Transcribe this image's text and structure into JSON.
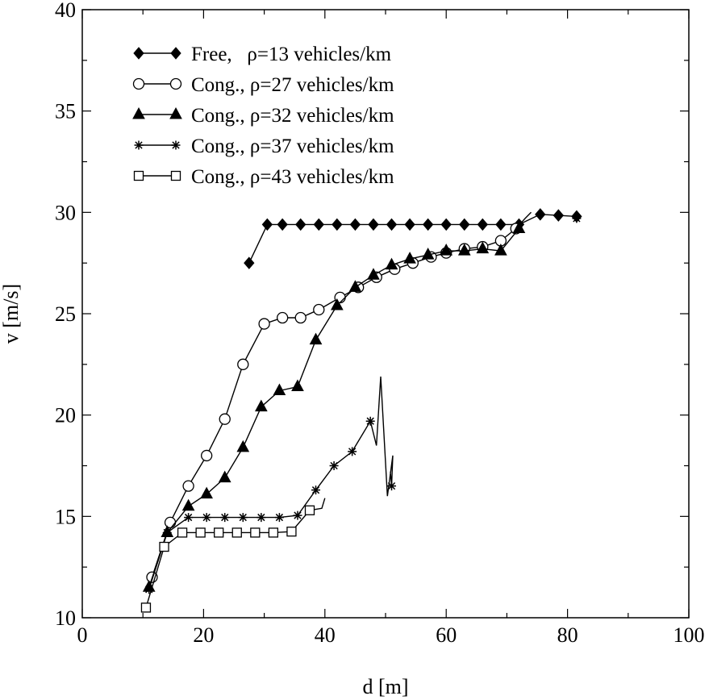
{
  "chart_data": {
    "type": "line",
    "title": "",
    "xlabel": "d [m]",
    "ylabel": "v [m/s]",
    "xlim": [
      0,
      100
    ],
    "ylim": [
      10,
      40
    ],
    "xticks": [
      0,
      20,
      40,
      60,
      80,
      100
    ],
    "yticks": [
      10,
      15,
      20,
      25,
      30,
      35,
      40
    ],
    "grid": false,
    "legend_position": "top-left",
    "series": [
      {
        "name": "Free,   ρ=13 vehicles/km",
        "marker": "diamond-filled",
        "x": [
          27.5,
          30.5,
          33,
          36,
          39,
          42,
          45,
          48,
          51,
          54,
          57,
          60,
          63,
          66,
          69,
          72,
          75.5,
          78.5,
          81.5
        ],
        "y": [
          27.5,
          29.4,
          29.4,
          29.4,
          29.4,
          29.4,
          29.4,
          29.4,
          29.4,
          29.4,
          29.4,
          29.4,
          29.4,
          29.4,
          29.4,
          29.4,
          29.9,
          29.85,
          29.8
        ],
        "line_only_x": [],
        "line_only_y": []
      },
      {
        "name": "Cong., ρ=27 vehicles/km",
        "marker": "circle-open",
        "x": [
          11.5,
          14.5,
          17.5,
          20.5,
          23.5,
          26.5,
          30,
          33,
          36,
          39,
          42.5,
          45.5,
          48.5,
          51.5,
          54.5,
          57.5,
          60,
          63,
          66,
          69,
          71.5
        ],
        "y": [
          12.0,
          14.7,
          16.5,
          18.0,
          19.8,
          22.5,
          24.5,
          24.8,
          24.8,
          25.2,
          25.8,
          26.3,
          26.8,
          27.2,
          27.5,
          27.8,
          28.0,
          28.2,
          28.3,
          28.6,
          29.2
        ],
        "line_only_x": [
          73,
          74
        ],
        "line_only_y": [
          29.7,
          30.0
        ]
      },
      {
        "name": "Cong., ρ=32 vehicles/km",
        "marker": "triangle-filled",
        "x": [
          11,
          14,
          17.5,
          20.5,
          23.5,
          26.5,
          29.5,
          32.5,
          35.5,
          38.5,
          42,
          45,
          48,
          51,
          54,
          57,
          60,
          63,
          66,
          69,
          72
        ],
        "y": [
          11.5,
          14.2,
          15.5,
          16.1,
          16.9,
          18.4,
          20.4,
          21.2,
          21.4,
          23.7,
          25.4,
          26.3,
          26.9,
          27.4,
          27.7,
          27.9,
          28.1,
          28.1,
          28.2,
          28.1,
          29.2
        ],
        "line_only_x": [],
        "line_only_y": []
      },
      {
        "name": "Cong., ρ=37 vehicles/km",
        "marker": "asterisk",
        "x": [
          11,
          14,
          17.5,
          20.5,
          23.5,
          26.5,
          29.5,
          32.5,
          35.5,
          38.5,
          41.5,
          44.5,
          47.5,
          51,
          81.5
        ],
        "y": [
          11.4,
          14.2,
          14.95,
          14.95,
          14.95,
          14.95,
          14.95,
          14.95,
          15.05,
          16.3,
          17.5,
          18.2,
          19.7,
          16.5,
          29.7
        ],
        "line_only_x": [
          48.5,
          49.2,
          50.3,
          51.2,
          50.8
        ],
        "line_only_y": [
          18.5,
          21.9,
          16.0,
          18.0,
          17.2
        ]
      },
      {
        "name": "Cong., ρ=43 vehicles/km",
        "marker": "square-open",
        "x": [
          10.5,
          13.5,
          16.5,
          19.5,
          22.5,
          25.5,
          28.5,
          31.5,
          34.5,
          37.5
        ],
        "y": [
          10.5,
          13.5,
          14.2,
          14.2,
          14.2,
          14.2,
          14.2,
          14.2,
          14.25,
          15.3
        ],
        "line_only_x": [
          39.5,
          40
        ],
        "line_only_y": [
          15.4,
          15.9
        ]
      }
    ]
  }
}
